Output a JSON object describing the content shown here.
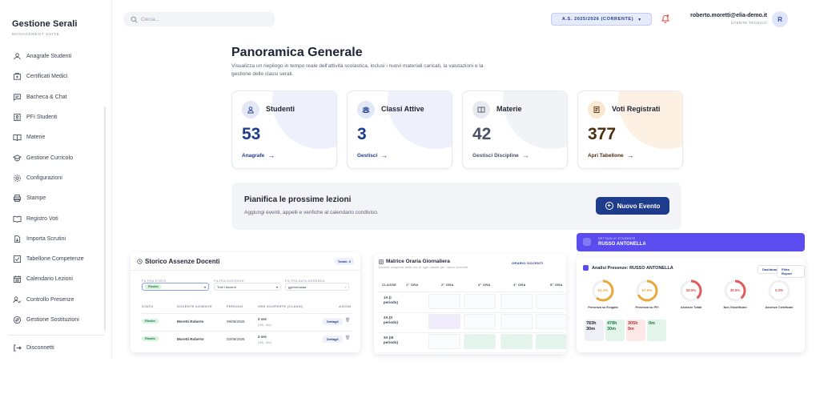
{
  "brand": {
    "title": "Gestione Serali",
    "subtitle": "MANAGEMENT SUITE"
  },
  "sidebar": {
    "items": [
      {
        "label": "Anagrafe Studenti",
        "icon": "users-icon"
      },
      {
        "label": "Certificati Medici",
        "icon": "medical-certificate-icon"
      },
      {
        "label": "Bacheca & Chat",
        "icon": "chat-icon"
      },
      {
        "label": "PFI Studenti",
        "icon": "id-card-icon"
      },
      {
        "label": "Materie",
        "icon": "book-open-icon"
      },
      {
        "label": "Gestione Curricolo",
        "icon": "school-icon"
      },
      {
        "label": "Configurazioni",
        "icon": "gear-icon"
      },
      {
        "label": "Stampe",
        "icon": "printer-icon"
      },
      {
        "label": "Registro Voti",
        "icon": "register-icon"
      },
      {
        "label": "Importa Scrutini",
        "icon": "file-import-icon"
      },
      {
        "label": "Tabellone Competenze",
        "icon": "checklist-icon"
      },
      {
        "label": "Calendario Lezioni",
        "icon": "calendar-icon"
      },
      {
        "label": "Controllo Presenze",
        "icon": "user-check-icon"
      },
      {
        "label": "Gestione Sostituzioni",
        "icon": "swap-icon"
      }
    ],
    "logout_label": "Disconnetti"
  },
  "topbar": {
    "search_placeholder": "Cerca...",
    "year": "A.S. 2025/2026 (CORRENTE)",
    "user_email": "roberto.moretti@elia-demo.it",
    "user_role": "UTENTE TECNICO",
    "avatar_letter": "R"
  },
  "main": {
    "title": "Panoramica Generale",
    "description": "Visualizza un riepilogo in tempo reale dell'attività scolastica, inclusi i nuovi materiali caricati, la valutazioni e la gestione delle classi serali.",
    "cards": [
      {
        "title": "Studenti",
        "value": "53",
        "link": "Anagrafe",
        "accent": "#1f3b8c",
        "icon_bg": "#e3e8f8",
        "deco": "#eef1fb"
      },
      {
        "title": "Classi Attive",
        "value": "3",
        "link": "Gestisci",
        "accent": "#1f3b8c",
        "icon_bg": "#e3e8f8",
        "deco": "#eef1fb"
      },
      {
        "title": "Materie",
        "value": "42",
        "link": "Gestisci Discipline",
        "accent": "#4a5163",
        "icon_bg": "#e8eaf0",
        "deco": "#f1f3f7"
      },
      {
        "title": "Voti Registrati",
        "value": "377",
        "link": "Apri Tabellone",
        "accent": "#4a2e0e",
        "icon_bg": "#fbe8d3",
        "deco": "#fdf1e4"
      }
    ],
    "plan": {
      "title": "Pianifica le prossime lezioni",
      "description": "Aggiungi eventi, appelli e verifiche al calendario condiviso.",
      "button": "Nuovo Evento"
    }
  },
  "preview_absences": {
    "title": "Storico Assenze Docenti",
    "total": "Totale: 2",
    "filters": {
      "status_label": "FILTRA STATO",
      "status_value": "Risolto",
      "teacher_label": "FILTRA DOCENTE",
      "teacher_value": "Tutti i docenti",
      "date_label": "FILTRA DATA ASSENZA",
      "date_placeholder": "gg/mm/aaaa"
    },
    "columns": [
      "STATO",
      "DOCENTE ASSENTE",
      "PERIODO",
      "ORE SCOPERTE (CLASSI)",
      "AZIONI"
    ],
    "rows": [
      {
        "status": "Risolto",
        "teacher": "Moretti Roberto",
        "period": "09/06/2026",
        "hours": "2 ore",
        "classes": "(3A, 3A)",
        "action": "Dettagli"
      },
      {
        "status": "Risolto",
        "teacher": "Moretti Roberto",
        "period": "02/06/2026",
        "hours": "2 ore",
        "classes": "(3A, 3A)",
        "action": "Dettagli"
      }
    ]
  },
  "preview_timetable": {
    "title": "Matrice Oraria Giornaliera",
    "subtitle": "Visione completa delle ore di ogni classe per l'anno corrente",
    "toolbar_label": "ORARIO DOCENTI",
    "columns": [
      "CLASSE",
      "1° ORA",
      "2° ORA",
      "3° ORA",
      "4° ORA",
      "5° ORA"
    ],
    "classes": [
      "1A (I periodo)",
      "2A (II periodo)",
      "3A (III periodo)"
    ]
  },
  "preview_attendance": {
    "banner_label": "DETTAGLIO STUDENTE",
    "banner_name": "RUSSO ANTONELLA",
    "title": "Analisi Presenze: RUSSO ANTONELLA",
    "buttons": [
      "Dashboard",
      "Filtra Report"
    ],
    "rings": [
      {
        "value": "61.1%",
        "label": "Presenza su Erogato",
        "color": "#e8a93a",
        "pct": 0.611
      },
      {
        "value": "67.5%",
        "label": "Presenza su PFI",
        "color": "#e8a93a",
        "pct": 0.675
      },
      {
        "value": "38.9%",
        "label": "Assenze Totali",
        "color": "#e25a5a",
        "pct": 0.389
      },
      {
        "value": "38.9%",
        "label": "Non Giustificate",
        "color": "#e25a5a",
        "pct": 0.389
      },
      {
        "value": "0.0%",
        "label": "Assenze Certificate",
        "color": "#e25a5a",
        "pct": 0.0
      }
    ],
    "tiles": [
      {
        "value": "783h 30m",
        "bg": "#eef0f5",
        "color": "#1e2433"
      },
      {
        "value": "478h 30m",
        "bg": "#e3f5ea",
        "color": "#1d7a44"
      },
      {
        "value": "305h 0m",
        "bg": "#fde7e7",
        "color": "#b23a3a"
      },
      {
        "value": "0m",
        "bg": "#e3f5ea",
        "color": "#1d7a44"
      }
    ]
  }
}
